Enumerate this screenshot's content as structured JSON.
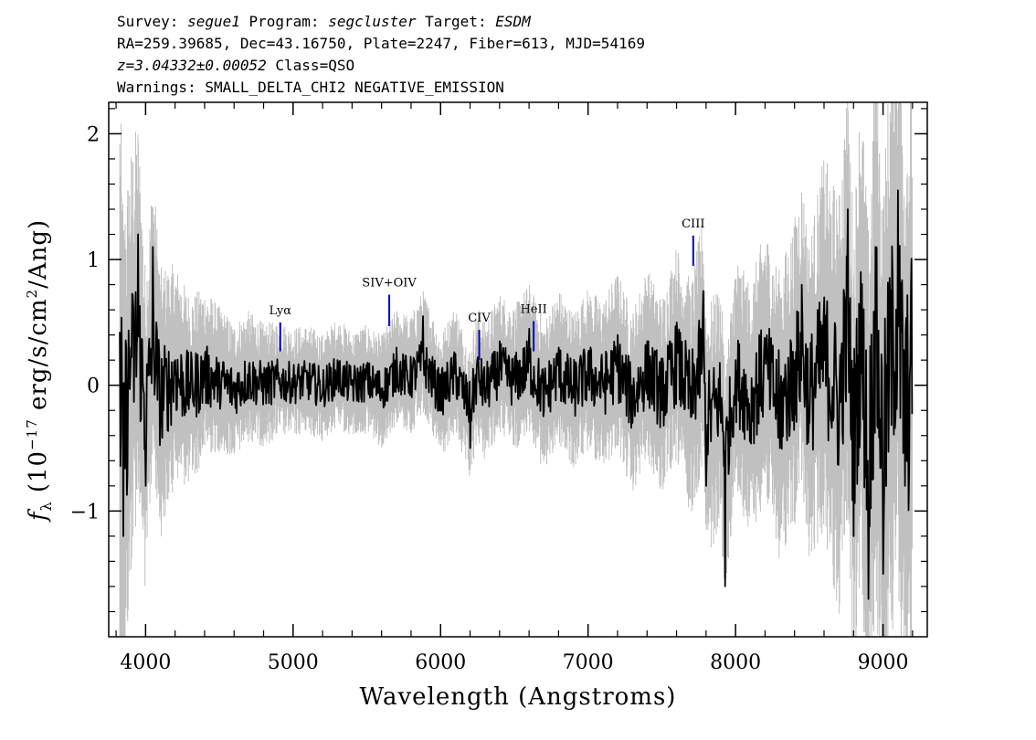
{
  "header": {
    "line1": {
      "survey_label": "Survey: ",
      "survey": "segue1",
      "program_label": " Program: ",
      "program": "segcluster",
      "target_label": " Target: ",
      "target": "ESDM"
    },
    "line2": "RA=259.39685, Dec=43.16750, Plate=2247, Fiber=613, MJD=54169",
    "line3": {
      "z": "z=3.04332±0.00052",
      "class": " Class=QSO"
    },
    "line4": "Warnings: SMALL_DELTA_CHI2 NEGATIVE_EMISSION"
  },
  "chart_data": {
    "type": "line",
    "xlabel": "Wavelength (Angstroms)",
    "ylabel": "f_λ (10^-17 erg/s/cm^2/Ang)",
    "ylabel_parts": {
      "f": "f",
      "sub": "λ",
      "pre": " (10",
      "exp": "−17",
      "mid": " erg/s/cm",
      "sq": "2",
      "post": "/Ang)"
    },
    "xlim": [
      3750,
      9300
    ],
    "ylim": [
      -2.0,
      2.25
    ],
    "xticks": [
      4000,
      5000,
      6000,
      7000,
      8000,
      9000
    ],
    "xtick_labels": [
      "4000",
      "5000",
      "6000",
      "7000",
      "8000",
      "9000"
    ],
    "yticks": [
      -1,
      0,
      1,
      2
    ],
    "ytick_labels": [
      "−1",
      "0",
      "1",
      "2"
    ],
    "colors": {
      "flux": "#000000",
      "error": "#c0c0c0",
      "line_marker": "#0000cc"
    },
    "series": [
      {
        "role": "error",
        "description_visible": false,
        "x": [
          3820,
          3850,
          3900,
          4000,
          4200,
          4500,
          5000,
          5500,
          6000,
          6500,
          7000,
          7500,
          7800,
          8000,
          8300,
          8500,
          8800,
          9000,
          9200
        ],
        "half_width": [
          1.8,
          1.4,
          1.2,
          0.9,
          0.6,
          0.4,
          0.3,
          0.3,
          0.35,
          0.4,
          0.45,
          0.55,
          0.7,
          0.65,
          0.8,
          0.9,
          1.3,
          1.6,
          1.8
        ]
      },
      {
        "role": "flux",
        "x": [
          3820,
          3850,
          3900,
          3950,
          4000,
          4050,
          4100,
          4200,
          4300,
          4400,
          4500,
          4600,
          4700,
          4800,
          4900,
          5000,
          5100,
          5200,
          5300,
          5400,
          5500,
          5600,
          5700,
          5800,
          5880,
          6000,
          6100,
          6200,
          6250,
          6300,
          6400,
          6500,
          6600,
          6700,
          6800,
          6900,
          7000,
          7100,
          7200,
          7300,
          7400,
          7500,
          7600,
          7700,
          7780,
          7800,
          7900,
          7930,
          8000,
          8100,
          8200,
          8300,
          8400,
          8450,
          8500,
          8600,
          8700,
          8760,
          8800,
          8850,
          8900,
          8950,
          9000,
          9050,
          9100,
          9150,
          9200
        ],
        "y": [
          0.1,
          -1.2,
          0.3,
          1.2,
          -0.8,
          1.1,
          -0.3,
          0.2,
          -0.1,
          0.2,
          0.1,
          -0.1,
          0.15,
          0.0,
          0.1,
          0.05,
          0.1,
          -0.05,
          0.2,
          0.0,
          0.1,
          -0.1,
          0.3,
          0.15,
          0.55,
          -0.2,
          0.25,
          -0.5,
          0.2,
          -0.1,
          0.35,
          0.1,
          0.45,
          -0.2,
          0.3,
          -0.1,
          0.25,
          0.0,
          0.4,
          -0.3,
          0.35,
          -0.2,
          0.5,
          -0.25,
          0.75,
          -0.8,
          -0.3,
          -1.6,
          0.2,
          -0.4,
          0.35,
          -0.5,
          0.2,
          0.8,
          -0.3,
          0.7,
          -0.4,
          1.4,
          -1.2,
          0.9,
          -1.7,
          1.1,
          -1.5,
          0.6,
          1.55,
          -0.8,
          0.4
        ]
      }
    ],
    "line_markers": [
      {
        "name": "Lyα",
        "x": 4913,
        "y_bottom": 0.27,
        "y_top": 0.5
      },
      {
        "name": "SIV+OIV",
        "x": 5652,
        "y_bottom": 0.47,
        "y_top": 0.72
      },
      {
        "name": "CIV",
        "x": 6262,
        "y_bottom": 0.2,
        "y_top": 0.44
      },
      {
        "name": "HeII",
        "x": 6631,
        "y_bottom": 0.27,
        "y_top": 0.51
      },
      {
        "name": "CIII",
        "x": 7713,
        "y_bottom": 0.95,
        "y_top": 1.19
      }
    ]
  }
}
